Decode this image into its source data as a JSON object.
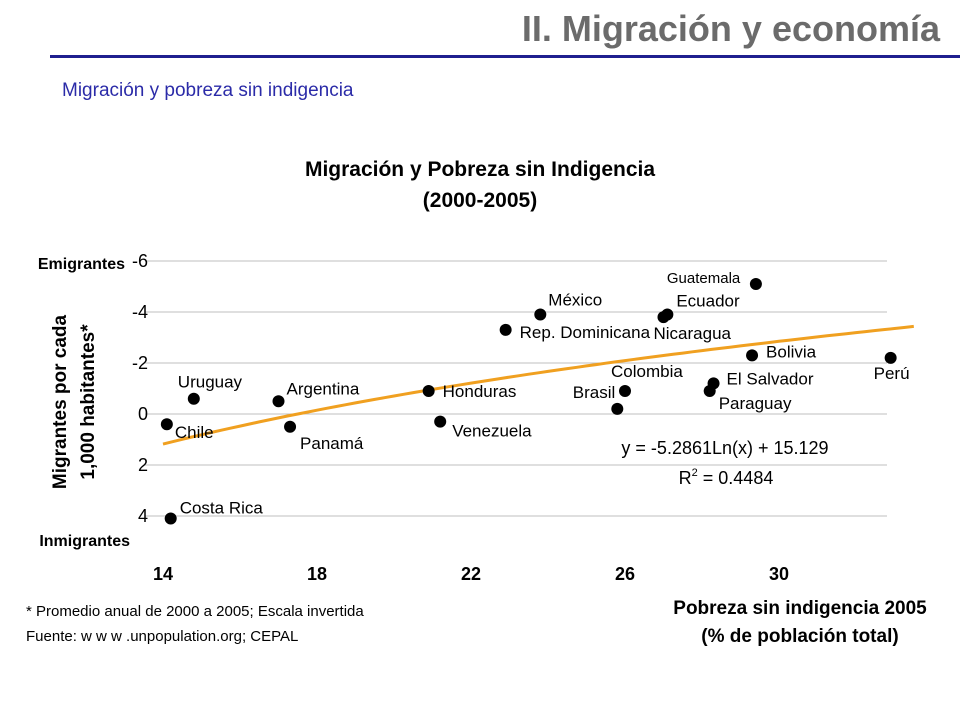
{
  "header": {
    "title": "II. Migración y economía",
    "subtitle": "Migración y pobreza sin indigencia"
  },
  "chart_data": {
    "type": "scatter",
    "title": "Migración y Pobreza sin Indigencia",
    "subtitle": "(2000-2005)",
    "ylabel_line1": "Migrantes por cada",
    "ylabel_line2": "1,000 habitantes*",
    "ylabel_top": "Emigrantes",
    "ylabel_bottom": "Inmigrantes",
    "xlabel_line1": "Pobreza sin indigencia 2005",
    "xlabel_line2": "(% de población total)",
    "xlim": [
      14,
      33.5
    ],
    "ylim": [
      -6,
      5
    ],
    "y_inverted": true,
    "x_ticks": [
      14,
      18,
      22,
      26,
      30
    ],
    "y_ticks": [
      -6,
      -4,
      -2,
      0,
      2,
      4
    ],
    "gridlines": "horizontal",
    "points": [
      {
        "label": "Chile",
        "x": 14.1,
        "y": 0.4
      },
      {
        "label": "Costa Rica",
        "x": 14.2,
        "y": 4.1
      },
      {
        "label": "Uruguay",
        "x": 14.8,
        "y": -0.6
      },
      {
        "label": "Argentina",
        "x": 17.0,
        "y": -0.5
      },
      {
        "label": "Panamá",
        "x": 17.3,
        "y": 0.5
      },
      {
        "label": "Honduras",
        "x": 20.9,
        "y": -0.9
      },
      {
        "label": "Venezuela",
        "x": 21.2,
        "y": 0.3
      },
      {
        "label": "Rep. Dominicana",
        "x": 22.9,
        "y": -3.3
      },
      {
        "label": "México",
        "x": 23.8,
        "y": -3.9
      },
      {
        "label": "Brasil",
        "x": 25.8,
        "y": -0.2
      },
      {
        "label": "Colombia",
        "x": 26.0,
        "y": -0.9
      },
      {
        "label": "Nicaragua",
        "x": 27.0,
        "y": -3.8
      },
      {
        "label": "Ecuador",
        "x": 27.1,
        "y": -3.9
      },
      {
        "label": "El Salvador",
        "x": 28.3,
        "y": -1.2
      },
      {
        "label": "Paraguay",
        "x": 28.2,
        "y": -0.9
      },
      {
        "label": "Guatemala",
        "x": 29.4,
        "y": -5.1
      },
      {
        "label": "Bolivia",
        "x": 29.3,
        "y": -2.3
      },
      {
        "label": "Perú",
        "x": 32.9,
        "y": -2.2
      }
    ],
    "trendline": {
      "equation": "y = -5.2861Ln(x) + 15.129",
      "r2_label": "R",
      "r2_sup": "2",
      "r2_value": " = 0.4484",
      "color": "#f0a020"
    },
    "marker_color": "#000000",
    "footnote": "* Promedio anual de 2000 a 2005; Escala invertida",
    "source": "Fuente:  w w w .unpopulation.org; CEPAL"
  }
}
